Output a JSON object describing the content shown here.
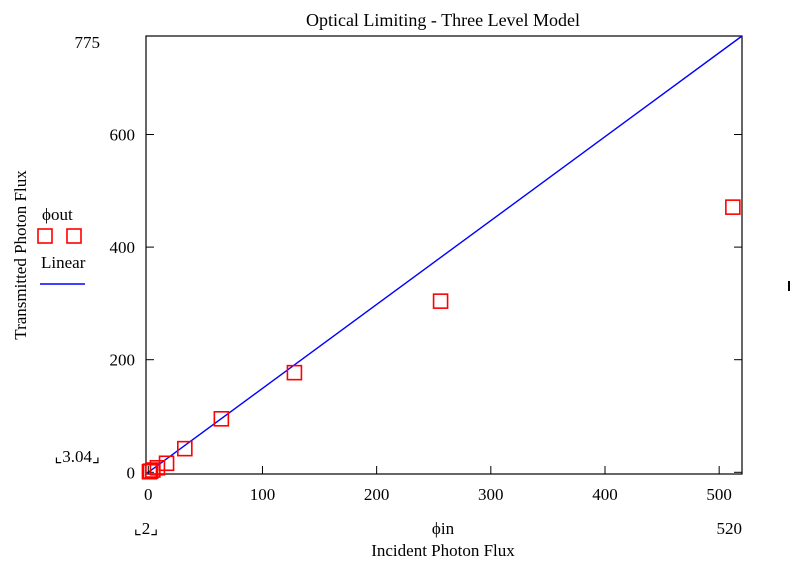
{
  "chart_data": {
    "type": "scatter",
    "title": "Optical Limiting - Three Level Model",
    "xlabel": "Incident Photon Flux",
    "ylabel": "Transmitted Photon Flux",
    "x_var_label": "ϕin",
    "xlim": [
      -2,
      520
    ],
    "ylim": [
      -3.04,
      775
    ],
    "x_range_labels": {
      "min": "⌞2⌟",
      "max": "520"
    },
    "y_range_labels": {
      "min": "⌞3.04⌟",
      "max": "775"
    },
    "xticks": [
      0,
      100,
      200,
      300,
      400,
      500
    ],
    "xtick_labels": [
      "0",
      "100",
      "200",
      "300",
      "400",
      "500"
    ],
    "yticks": [
      0,
      200,
      400,
      600
    ],
    "ytick_labels": [
      "0",
      "200",
      "400",
      "600"
    ],
    "grid": false,
    "legend_position": "left",
    "series": [
      {
        "name": "ϕout",
        "kind": "markers",
        "marker": "square",
        "color": "#ff0000",
        "points": [
          [
            1,
            1
          ],
          [
            2,
            2
          ],
          [
            4,
            4
          ],
          [
            8,
            8
          ],
          [
            16,
            16
          ],
          [
            32,
            42
          ],
          [
            64,
            95
          ],
          [
            128,
            177
          ],
          [
            256,
            304
          ],
          [
            512,
            471
          ]
        ]
      },
      {
        "name": "Linear",
        "kind": "line",
        "color": "#0000ff",
        "points": [
          [
            0,
            0
          ],
          [
            520,
            775
          ]
        ]
      }
    ]
  }
}
